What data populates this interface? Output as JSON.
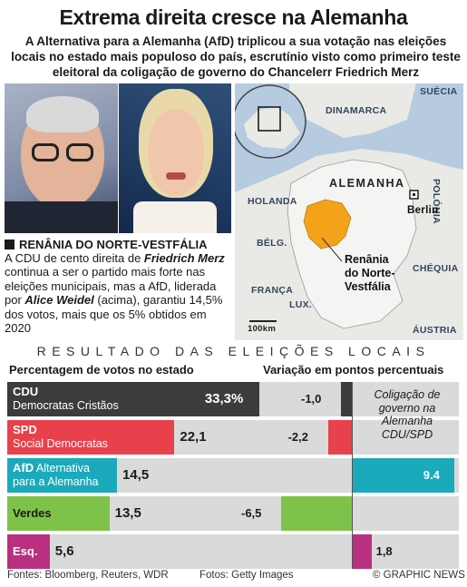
{
  "title": "Extrema direita cresce na Alemanha",
  "subtitle": "A Alternativa para a Alemanha (AfD) triplicou a sua votação nas eleições locais no estado mais populoso do país, escrutínio visto como primeiro teste eleitoral da coligação de governo do Chancelerr Friedrich Merz",
  "section_heading": "RENÂNIA DO NORTE-VESTFÁLIA",
  "body": {
    "p1": "A CDU de cento direita de ",
    "name1": "Friedrich Merz",
    "p2": " continua a ser o partido mais forte nas eleições municipais, mas a AfD, liderada por ",
    "name2": "Alice Weidel",
    "p3": " (acima), garantiu 14,5% dos votos, mais que os 5% obtidos em 2020"
  },
  "map": {
    "labels": {
      "dinamarca": "DINAMARCA",
      "suecia": "SUÉCIA",
      "alemanha": "ALEMANHA",
      "holanda": "HOLANDA",
      "polonia": "POLÓNIA",
      "belg": "BÉLG.",
      "lux": "LUX.",
      "franca": "FRANÇA",
      "chequia": "CHÉQUIA",
      "austria": "ÁUSTRIA",
      "berlin": "Berlin",
      "region1": "Renânia",
      "region2": "do Norte-",
      "region3": "Vestfália",
      "scale": "100km"
    },
    "colors": {
      "sea": "#b7cbe0",
      "land": "#e9e9e6",
      "germany": "#f4f4f2",
      "region": "#f5a21b"
    }
  },
  "results_heading": "RESULTADO DAS ELEIÇÕES LOCAIS",
  "col_left": "Percentagem de votos no estado",
  "col_right": "Variação em pontos percentuais",
  "coalition_note": "Coligação de governo na Alemanha CDU/SPD",
  "chart_data": {
    "type": "bar",
    "categories": [
      "CDU",
      "SPD",
      "AfD",
      "Verdes",
      "Esq."
    ],
    "series": [
      {
        "name": "Percentagem de votos no estado",
        "values": [
          33.3,
          22.1,
          14.5,
          13.5,
          5.6
        ]
      },
      {
        "name": "Variação em pontos percentuais",
        "values": [
          -1.0,
          -2.2,
          9.4,
          -6.5,
          1.8
        ]
      }
    ],
    "rows": [
      {
        "abbr": "CDU",
        "name": "Democratas Cristãos",
        "value_label": "33,3%",
        "change_label": "-1,0",
        "color": "#3c3c3c"
      },
      {
        "abbr": "SPD",
        "name": "Social Democratas",
        "value_label": "22,1",
        "change_label": "-2,2",
        "color": "#e8414c"
      },
      {
        "abbr": "AfD",
        "name": "Alternativa para a Alemanha",
        "name_line1": "Alternativa",
        "name_line2": "para a Alemanha",
        "value_label": "14,5",
        "change_label": "9.4",
        "color": "#1aaabb"
      },
      {
        "abbr": "Verdes",
        "name": "",
        "value_label": "13,5",
        "change_label": "-6,5",
        "color": "#7fc24a"
      },
      {
        "abbr": "Esq.",
        "name": "",
        "value_label": "5,6",
        "change_label": "1,8",
        "color": "#b8307f"
      }
    ],
    "xlim_votes": [
      0,
      35
    ],
    "xlim_change": [
      -10,
      10
    ]
  },
  "footer": {
    "sources": "Fontes: Bloomberg, Reuters, WDR",
    "photos": "Fotos: Getty Images",
    "credit": "© GRAPHIC NEWS"
  }
}
